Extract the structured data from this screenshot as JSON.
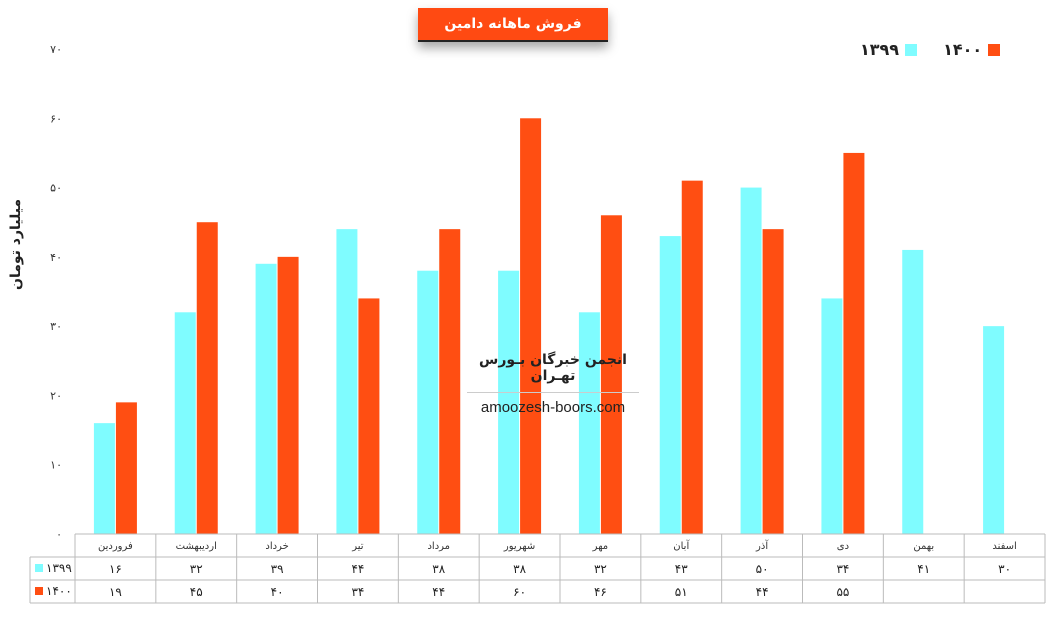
{
  "chart_data": {
    "type": "bar",
    "title": "فروش ماهانه دامین",
    "ylabel": "میلیارد تومان",
    "ylim": [
      0,
      70
    ],
    "yticks": [
      "۰",
      "۱۰",
      "۲۰",
      "۳۰",
      "۴۰",
      "۵۰",
      "۶۰",
      "۷۰"
    ],
    "categories": [
      "فروردین",
      "اردیبهشت",
      "خرداد",
      "تیر",
      "مرداد",
      "شهریور",
      "مهر",
      "آبان",
      "آذر",
      "دی",
      "بهمن",
      "اسفند"
    ],
    "series": [
      {
        "name": "۱۳۹۹",
        "color": "#7ffcff",
        "values": [
          16,
          32,
          39,
          44,
          38,
          38,
          32,
          43,
          50,
          34,
          41,
          30
        ],
        "labels": [
          "۱۶",
          "۳۲",
          "۳۹",
          "۴۴",
          "۳۸",
          "۳۸",
          "۳۲",
          "۴۳",
          "۵۰",
          "۳۴",
          "۴۱",
          "۳۰"
        ]
      },
      {
        "name": "۱۴۰۰",
        "color": "#ff4e12",
        "values": [
          19,
          45,
          40,
          34,
          44,
          60,
          46,
          51,
          44,
          55,
          null,
          null
        ],
        "labels": [
          "۱۹",
          "۴۵",
          "۴۰",
          "۳۴",
          "۴۴",
          "۶۰",
          "۴۶",
          "۵۱",
          "۴۴",
          "۵۵",
          "",
          ""
        ]
      }
    ],
    "legend_position": "top-right",
    "grid": false,
    "data_table": true
  },
  "watermark": {
    "title": "انجمن خبرگان بـورس تهـران",
    "url": "amoozesh-boors.com"
  }
}
